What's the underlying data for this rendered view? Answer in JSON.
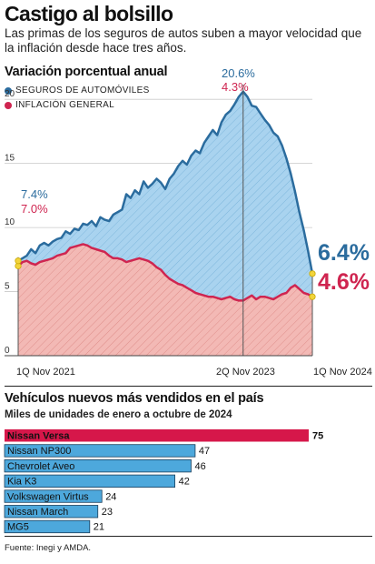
{
  "header": {
    "title": "Castigo al bolsillo",
    "subtitle": "Las primas de los seguros de autos suben a mayor velocidad que la inflación desde hace tres años."
  },
  "line_section": {
    "title": "Variación porcentual anual",
    "legend": [
      "SEGUROS DE AUTOMÓVILES",
      "INFLACIÓN GENERAL"
    ]
  },
  "bar_section": {
    "title": "Vehículos nuevos más vendidos en el país",
    "subtitle": "Miles de unidades de enero a octubre de 2024"
  },
  "source": "Fuente: Inegi y AMDA.",
  "colors": {
    "insurance_line": "#2b6c9e",
    "insurance_fill": "#a9d3ef",
    "inflation_line": "#cf2550",
    "inflation_fill": "#f3b9b5",
    "highlight_bar": "#d6174a",
    "bar": "#4da8dc",
    "marker": "#f2d43c"
  },
  "chart_data": [
    {
      "type": "area",
      "title": "Variación porcentual anual",
      "ylim": [
        0,
        22
      ],
      "yticks": [
        "0",
        "5",
        "10",
        "15",
        "20"
      ],
      "grid": true,
      "legend_position": "top-left",
      "x_labels": [
        "1Q Nov 2021",
        "2Q Nov 2023",
        "1Q Nov 2024"
      ],
      "annotations": {
        "start": [
          "7.4%",
          "7.0%"
        ],
        "peak": [
          "20.6%",
          "4.3%"
        ],
        "end": [
          "6.4%",
          "4.6%"
        ]
      },
      "series": [
        {
          "name": "SEGUROS DE AUTOMÓVILES",
          "values": [
            7.4,
            7.6,
            7.8,
            8.3,
            8.0,
            8.6,
            8.8,
            8.6,
            8.9,
            9.1,
            9.2,
            9.7,
            9.5,
            9.9,
            9.8,
            10.3,
            10.2,
            10.5,
            10.1,
            10.8,
            10.6,
            10.5,
            11.0,
            11.2,
            11.4,
            12.6,
            12.3,
            12.9,
            12.6,
            13.6,
            13.1,
            13.4,
            13.8,
            13.5,
            13.0,
            13.8,
            14.2,
            14.8,
            15.2,
            14.9,
            15.6,
            16.0,
            15.8,
            16.6,
            17.1,
            17.6,
            17.2,
            18.2,
            18.8,
            19.1,
            19.6,
            20.2,
            20.6,
            20.2,
            19.5,
            19.4,
            18.9,
            18.4,
            18.0,
            17.4,
            17.1,
            16.4,
            15.4,
            14.2,
            12.8,
            11.2,
            9.8,
            8.2,
            6.4
          ]
        },
        {
          "name": "INFLACIÓN GENERAL",
          "values": [
            7.0,
            7.3,
            7.4,
            7.2,
            7.1,
            7.3,
            7.4,
            7.5,
            7.6,
            7.8,
            7.9,
            8.0,
            8.4,
            8.5,
            8.6,
            8.7,
            8.6,
            8.4,
            8.3,
            8.2,
            8.1,
            7.8,
            7.6,
            7.6,
            7.5,
            7.3,
            7.4,
            7.5,
            7.6,
            7.5,
            7.4,
            7.2,
            6.9,
            6.7,
            6.3,
            6.0,
            5.8,
            5.6,
            5.5,
            5.3,
            5.1,
            4.9,
            4.8,
            4.7,
            4.6,
            4.6,
            4.5,
            4.4,
            4.5,
            4.6,
            4.4,
            4.3,
            4.3,
            4.5,
            4.7,
            4.4,
            4.6,
            4.6,
            4.5,
            4.4,
            4.6,
            4.8,
            4.9,
            5.3,
            5.5,
            5.2,
            4.9,
            4.8,
            4.6
          ]
        }
      ]
    },
    {
      "type": "bar",
      "title": "Vehículos nuevos más vendidos en el país",
      "subtitle": "Miles de unidades de enero a octubre de 2024",
      "categories": [
        "Nissan Versa",
        "Nissan NP300",
        "Chevrolet Aveo",
        "Kia K3",
        "Volkswagen Virtus",
        "Nissan March",
        "MG5"
      ],
      "values": [
        75,
        47,
        46,
        42,
        24,
        23,
        21
      ],
      "highlight": "Nissan Versa",
      "xlim": [
        0,
        75
      ]
    }
  ]
}
